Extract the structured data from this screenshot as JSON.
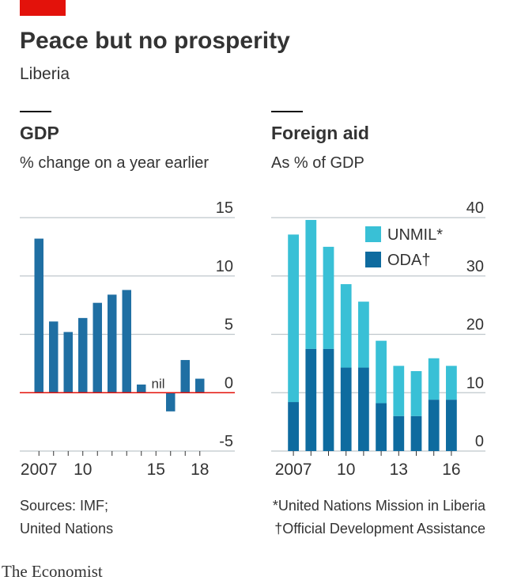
{
  "title": "Peace but no prosperity",
  "subtitle": "Liberia",
  "chart_data": [
    {
      "type": "bar",
      "title": "GDP",
      "subtitle": "% change on a year earlier",
      "categories": [
        "2007",
        null,
        null,
        "10",
        null,
        null,
        null,
        null,
        "15",
        null,
        null,
        "18"
      ],
      "values": [
        13.2,
        6.1,
        5.2,
        6.4,
        7.7,
        8.4,
        8.8,
        0.7,
        0,
        -1.6,
        2.8,
        1.2
      ],
      "value_labels": [
        null,
        null,
        null,
        null,
        null,
        null,
        null,
        null,
        "nil",
        null,
        null,
        null
      ],
      "color": "#1f6fa3",
      "zero_line_color": "#e3120b",
      "ylim": [
        -5,
        15
      ],
      "yticks": [
        15,
        10,
        5,
        0,
        -5
      ],
      "grid": true
    },
    {
      "type": "stacked_bar",
      "title": "Foreign aid",
      "subtitle": "As % of GDP",
      "categories": [
        "2007",
        null,
        null,
        "10",
        null,
        null,
        "13",
        null,
        null,
        "16"
      ],
      "series": [
        {
          "name": "ODA†",
          "color": "#0e6b9f",
          "values": [
            8.4,
            17.5,
            17.5,
            14.3,
            14.3,
            8.2,
            6.0,
            6.0,
            8.8,
            8.8
          ]
        },
        {
          "name": "UNMIL*",
          "color": "#39c0d6",
          "values": [
            28.7,
            22.1,
            17.5,
            14.3,
            11.3,
            10.7,
            8.6,
            7.7,
            7.1,
            5.8
          ]
        }
      ],
      "ylim": [
        0,
        40
      ],
      "yticks": [
        40,
        30,
        20,
        10,
        0
      ],
      "grid": true,
      "legend": "top-right"
    }
  ],
  "sources": [
    "Sources: IMF;",
    "United Nations"
  ],
  "footnotes": [
    "*United Nations Mission in Liberia",
    "†Official Development Assistance"
  ],
  "brand": "The Economist"
}
